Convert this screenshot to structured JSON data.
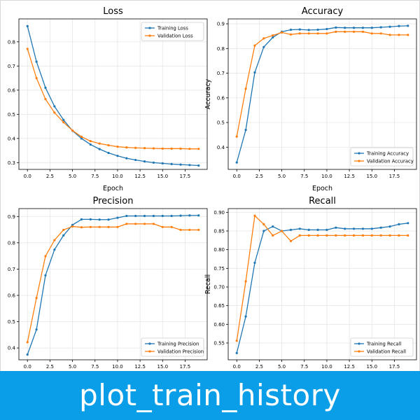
{
  "banner": {
    "text": "plot_train_history"
  },
  "colors": {
    "training": "#1f77b4",
    "validation": "#ff7f0e",
    "grid": "#e6e6e6",
    "axis": "#000000"
  },
  "chart_data": [
    {
      "type": "line",
      "title": "Loss",
      "xlabel": "Epoch",
      "ylabel": "Loss",
      "xlim": [
        -0.95,
        19.95
      ],
      "ylim": [
        0.272,
        0.895
      ],
      "xticks": [
        0.0,
        2.5,
        5.0,
        7.5,
        10.0,
        12.5,
        15.0,
        17.5
      ],
      "xtick_labels": [
        "0.0",
        "2.5",
        "5.0",
        "7.5",
        "10.0",
        "12.5",
        "15.0",
        "17.5"
      ],
      "yticks": [
        0.3,
        0.4,
        0.5,
        0.6,
        0.7,
        0.8
      ],
      "ytick_labels": [
        "0.3",
        "0.4",
        "0.5",
        "0.6",
        "0.7",
        "0.8"
      ],
      "legend": "top-right",
      "grid": true,
      "x": [
        0,
        1,
        2,
        3,
        4,
        5,
        6,
        7,
        8,
        9,
        10,
        11,
        12,
        13,
        14,
        15,
        16,
        17,
        18,
        19
      ],
      "series": [
        {
          "name": "Training Loss",
          "values": [
            0.865,
            0.718,
            0.61,
            0.533,
            0.477,
            0.432,
            0.4,
            0.375,
            0.356,
            0.34,
            0.328,
            0.318,
            0.311,
            0.305,
            0.3,
            0.297,
            0.294,
            0.292,
            0.29,
            0.288
          ]
        },
        {
          "name": "Validation Loss",
          "values": [
            0.771,
            0.65,
            0.563,
            0.507,
            0.467,
            0.433,
            0.407,
            0.389,
            0.379,
            0.372,
            0.366,
            0.363,
            0.361,
            0.36,
            0.359,
            0.358,
            0.358,
            0.358,
            0.357,
            0.357
          ]
        }
      ]
    },
    {
      "type": "line",
      "title": "Accuracy",
      "xlabel": "Epoch",
      "ylabel": "Accuracy",
      "xlim": [
        -0.95,
        19.95
      ],
      "ylim": [
        0.31,
        0.92
      ],
      "xticks": [
        0.0,
        2.5,
        5.0,
        7.5,
        10.0,
        12.5,
        15.0,
        17.5
      ],
      "xtick_labels": [
        "0.0",
        "2.5",
        "5.0",
        "7.5",
        "10.0",
        "12.5",
        "15.0",
        "17.5"
      ],
      "yticks": [
        0.4,
        0.5,
        0.6,
        0.7,
        0.8,
        0.9
      ],
      "ytick_labels": [
        "0.4",
        "0.5",
        "0.6",
        "0.7",
        "0.8",
        "0.9"
      ],
      "legend": "bottom-right",
      "grid": true,
      "x": [
        0,
        1,
        2,
        3,
        4,
        5,
        6,
        7,
        8,
        9,
        10,
        11,
        12,
        13,
        14,
        15,
        16,
        17,
        18,
        19
      ],
      "series": [
        {
          "name": "Training Accuracy",
          "values": [
            0.338,
            0.47,
            0.703,
            0.806,
            0.845,
            0.868,
            0.876,
            0.877,
            0.875,
            0.876,
            0.879,
            0.885,
            0.884,
            0.884,
            0.884,
            0.884,
            0.886,
            0.888,
            0.891,
            0.892
          ]
        },
        {
          "name": "Validation Accuracy",
          "values": [
            0.443,
            0.637,
            0.812,
            0.841,
            0.853,
            0.865,
            0.857,
            0.861,
            0.861,
            0.861,
            0.861,
            0.868,
            0.868,
            0.868,
            0.868,
            0.861,
            0.861,
            0.855,
            0.855,
            0.855
          ]
        }
      ]
    },
    {
      "type": "line",
      "title": "Precision",
      "xlabel": "",
      "ylabel": "Precision",
      "xlim": [
        -0.95,
        19.95
      ],
      "ylim": [
        0.355,
        0.93
      ],
      "xticks": [
        0.0,
        2.5,
        5.0,
        7.5,
        10.0,
        12.5,
        15.0,
        17.5
      ],
      "xtick_labels": [
        "0.0",
        "2.5",
        "5.0",
        "7.5",
        "10.0",
        "12.5",
        "15.0",
        "17.5"
      ],
      "yticks": [
        0.4,
        0.5,
        0.6,
        0.7,
        0.8,
        0.9
      ],
      "ytick_labels": [
        "0.4",
        "0.5",
        "0.6",
        "0.7",
        "0.8",
        "0.9"
      ],
      "legend": "bottom-right",
      "grid": true,
      "x": [
        0,
        1,
        2,
        3,
        4,
        5,
        6,
        7,
        8,
        9,
        10,
        11,
        12,
        13,
        14,
        15,
        16,
        17,
        18,
        19
      ],
      "series": [
        {
          "name": "Training Precision",
          "values": [
            0.375,
            0.47,
            0.676,
            0.774,
            0.828,
            0.868,
            0.889,
            0.889,
            0.888,
            0.888,
            0.895,
            0.902,
            0.902,
            0.902,
            0.902,
            0.902,
            0.902,
            0.903,
            0.904,
            0.904
          ]
        },
        {
          "name": "Validation Precision",
          "values": [
            0.422,
            0.59,
            0.749,
            0.81,
            0.849,
            0.862,
            0.859,
            0.86,
            0.86,
            0.86,
            0.86,
            0.872,
            0.872,
            0.872,
            0.872,
            0.86,
            0.86,
            0.849,
            0.849,
            0.849
          ]
        }
      ]
    },
    {
      "type": "line",
      "title": "Recall",
      "xlabel": "",
      "ylabel": "Recall",
      "xlim": [
        -0.95,
        19.95
      ],
      "ylim": [
        0.505,
        0.91
      ],
      "xticks": [
        0.0,
        2.5,
        5.0,
        7.5,
        10.0,
        12.5,
        15.0,
        17.5
      ],
      "xtick_labels": [
        "0.0",
        "2.5",
        "5.0",
        "7.5",
        "10.0",
        "12.5",
        "15.0",
        "17.5"
      ],
      "yticks": [
        0.55,
        0.6,
        0.65,
        0.7,
        0.75,
        0.8,
        0.85,
        0.9
      ],
      "ytick_labels": [
        "0.55",
        "0.60",
        "0.65",
        "0.70",
        "0.75",
        "0.80",
        "0.85",
        "0.90"
      ],
      "legend": "bottom-right",
      "grid": true,
      "x": [
        0,
        1,
        2,
        3,
        4,
        5,
        6,
        7,
        8,
        9,
        10,
        11,
        12,
        13,
        14,
        15,
        16,
        17,
        18,
        19
      ],
      "series": [
        {
          "name": "Training Recall",
          "values": [
            0.523,
            0.621,
            0.765,
            0.85,
            0.862,
            0.85,
            0.853,
            0.856,
            0.853,
            0.853,
            0.853,
            0.859,
            0.856,
            0.856,
            0.856,
            0.856,
            0.859,
            0.862,
            0.868,
            0.871
          ]
        },
        {
          "name": "Validation Recall",
          "values": [
            0.556,
            0.715,
            0.891,
            0.868,
            0.838,
            0.85,
            0.823,
            0.838,
            0.838,
            0.838,
            0.838,
            0.838,
            0.838,
            0.838,
            0.838,
            0.838,
            0.838,
            0.838,
            0.838,
            0.838
          ]
        }
      ]
    }
  ]
}
